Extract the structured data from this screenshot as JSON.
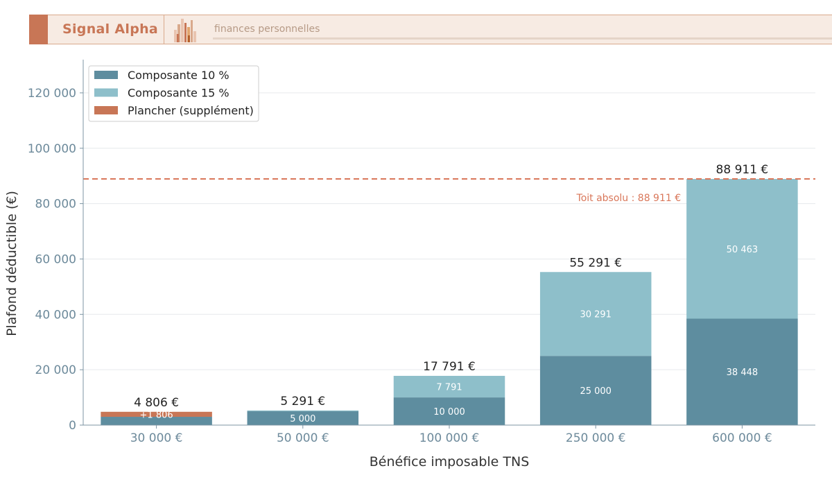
{
  "header": {
    "brand": "Signal Alpha",
    "tagline": "finances personnelles",
    "logo_icon": "bar-chart-logo-icon"
  },
  "chart_data": {
    "type": "bar",
    "stacked": true,
    "categories": [
      "30 000 €",
      "50 000 €",
      "100 000 €",
      "250 000 €",
      "600 000 €"
    ],
    "series": [
      {
        "name": "Composante 10 %",
        "color": "#5e8d9f",
        "values": [
          3000,
          5000,
          10000,
          25000,
          38448
        ],
        "labels": [
          "",
          "5 000",
          "10 000",
          "25 000",
          "38 448"
        ]
      },
      {
        "name": "Composante 15 %",
        "color": "#8ebfca",
        "values": [
          0,
          291,
          7791,
          30291,
          50463
        ],
        "labels": [
          "",
          "",
          "7 791",
          "30 291",
          "50 463"
        ]
      },
      {
        "name": "Plancher (supplément)",
        "color": "#c87656",
        "values": [
          1806,
          0,
          0,
          0,
          0
        ],
        "labels": [
          "+1 806",
          "",
          "",
          "",
          ""
        ]
      }
    ],
    "totals": [
      "4 806 €",
      "5 291 €",
      "17 791 €",
      "55 291 €",
      "88 911 €"
    ],
    "xlabel": "Bénéfice imposable TNS",
    "ylabel": "Plafond déductible (€)",
    "ylim": [
      0,
      132000
    ],
    "yticks": [
      0,
      20000,
      40000,
      60000,
      80000,
      100000,
      120000
    ],
    "ytick_labels": [
      "0",
      "20 000",
      "40 000",
      "60 000",
      "80 000",
      "100 000",
      "120 000"
    ],
    "reference_line": {
      "value": 88911,
      "label": "Toit absolu : 88 911 €",
      "color": "#d9775a",
      "style": "dashed"
    },
    "grid": true,
    "legend_position": "top-left"
  }
}
